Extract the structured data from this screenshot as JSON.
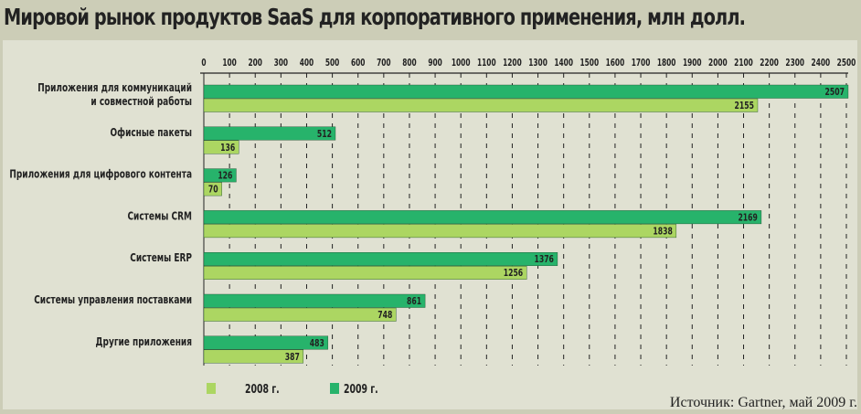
{
  "chart_data": {
    "type": "bar",
    "orientation": "horizontal",
    "title": "Мировой рынок продуктов SaaS для корпоративного применения, млн долл.",
    "categories": [
      [
        "Приложения для коммуникаций",
        "и совместной работы"
      ],
      [
        "Офисные пакеты"
      ],
      [
        "Приложения для цифрового контента"
      ],
      [
        "Системы CRM"
      ],
      [
        "Системы ERP"
      ],
      [
        "Системы управления поставками"
      ],
      [
        "Другие приложения"
      ]
    ],
    "series": [
      {
        "name": "2009 г.",
        "color": "#27b36b",
        "values": [
          2507,
          512,
          126,
          2169,
          1376,
          861,
          483
        ]
      },
      {
        "name": "2008 г.",
        "color": "#acd662",
        "values": [
          2155,
          136,
          70,
          1838,
          1256,
          748,
          387
        ]
      }
    ],
    "xlim": [
      0,
      2500
    ],
    "ticks": [
      0,
      100,
      200,
      300,
      400,
      500,
      600,
      700,
      800,
      900,
      1000,
      1100,
      1200,
      1300,
      1400,
      1500,
      1600,
      1700,
      1800,
      1900,
      2000,
      2100,
      2200,
      2300,
      2400,
      2500
    ],
    "grid": true,
    "legend": "bottom-left",
    "source": "Источник: Gartner,  май 2009 г."
  }
}
